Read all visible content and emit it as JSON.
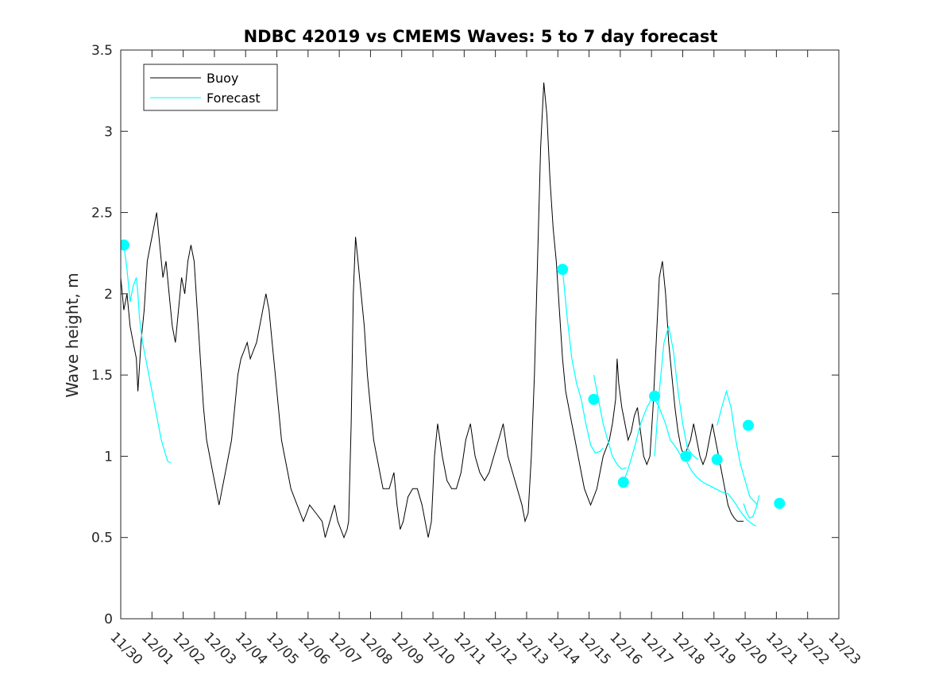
{
  "chart_data": {
    "type": "line",
    "title": "NDBC 42019 vs CMEMS Waves: 5 to 7 day forecast",
    "xlabel": "",
    "ylabel": "Wave height, m",
    "xlim": [
      "11/30",
      "12/23"
    ],
    "ylim": [
      0,
      3.5
    ],
    "x_ticks": [
      "11/30",
      "12/01",
      "12/02",
      "12/03",
      "12/04",
      "12/05",
      "12/06",
      "12/07",
      "12/08",
      "12/09",
      "12/10",
      "12/11",
      "12/12",
      "12/13",
      "12/14",
      "12/15",
      "12/16",
      "12/17",
      "12/18",
      "12/19",
      "12/20",
      "12/21",
      "12/22",
      "12/23"
    ],
    "y_ticks": [
      "0",
      "0.5",
      "1",
      "1.5",
      "2",
      "2.5",
      "3",
      "3.5"
    ],
    "grid": false,
    "legend": {
      "position": "top-left",
      "entries": [
        "Buoy",
        "Forecast"
      ]
    },
    "colors": {
      "buoy": "#000000",
      "forecast": "#00ffff",
      "axes": "#262626"
    },
    "series": [
      {
        "name": "Buoy",
        "x_unit": "days since 11/30",
        "points": [
          [
            0.0,
            2.1
          ],
          [
            0.1,
            1.9
          ],
          [
            0.2,
            2.0
          ],
          [
            0.3,
            1.8
          ],
          [
            0.4,
            1.7
          ],
          [
            0.5,
            1.6
          ],
          [
            0.55,
            1.4
          ],
          [
            0.65,
            1.7
          ],
          [
            0.75,
            1.9
          ],
          [
            0.85,
            2.2
          ],
          [
            0.95,
            2.3
          ],
          [
            1.05,
            2.4
          ],
          [
            1.15,
            2.5
          ],
          [
            1.25,
            2.3
          ],
          [
            1.35,
            2.1
          ],
          [
            1.45,
            2.2
          ],
          [
            1.55,
            2.0
          ],
          [
            1.65,
            1.8
          ],
          [
            1.75,
            1.7
          ],
          [
            1.85,
            1.9
          ],
          [
            1.95,
            2.1
          ],
          [
            2.05,
            2.0
          ],
          [
            2.15,
            2.2
          ],
          [
            2.25,
            2.3
          ],
          [
            2.35,
            2.2
          ],
          [
            2.45,
            1.9
          ],
          [
            2.55,
            1.6
          ],
          [
            2.65,
            1.3
          ],
          [
            2.75,
            1.1
          ],
          [
            2.85,
            1.0
          ],
          [
            2.95,
            0.9
          ],
          [
            3.05,
            0.8
          ],
          [
            3.15,
            0.7
          ],
          [
            3.25,
            0.8
          ],
          [
            3.35,
            0.9
          ],
          [
            3.45,
            1.0
          ],
          [
            3.55,
            1.1
          ],
          [
            3.65,
            1.3
          ],
          [
            3.75,
            1.5
          ],
          [
            3.85,
            1.6
          ],
          [
            3.95,
            1.65
          ],
          [
            4.05,
            1.7
          ],
          [
            4.15,
            1.6
          ],
          [
            4.25,
            1.65
          ],
          [
            4.35,
            1.7
          ],
          [
            4.45,
            1.8
          ],
          [
            4.55,
            1.9
          ],
          [
            4.65,
            2.0
          ],
          [
            4.75,
            1.9
          ],
          [
            4.85,
            1.7
          ],
          [
            4.95,
            1.5
          ],
          [
            5.05,
            1.3
          ],
          [
            5.15,
            1.1
          ],
          [
            5.25,
            1.0
          ],
          [
            5.35,
            0.9
          ],
          [
            5.45,
            0.8
          ],
          [
            5.55,
            0.75
          ],
          [
            5.65,
            0.7
          ],
          [
            5.75,
            0.65
          ],
          [
            5.85,
            0.6
          ],
          [
            5.95,
            0.65
          ],
          [
            6.05,
            0.7
          ],
          [
            6.25,
            0.65
          ],
          [
            6.45,
            0.6
          ],
          [
            6.55,
            0.5
          ],
          [
            6.7,
            0.6
          ],
          [
            6.85,
            0.7
          ],
          [
            6.95,
            0.6
          ],
          [
            7.05,
            0.55
          ],
          [
            7.15,
            0.5
          ],
          [
            7.25,
            0.55
          ],
          [
            7.3,
            0.6
          ],
          [
            7.38,
            1.2
          ],
          [
            7.45,
            2.0
          ],
          [
            7.52,
            2.35
          ],
          [
            7.6,
            2.2
          ],
          [
            7.7,
            2.0
          ],
          [
            7.8,
            1.8
          ],
          [
            7.9,
            1.5
          ],
          [
            8.0,
            1.3
          ],
          [
            8.1,
            1.1
          ],
          [
            8.2,
            1.0
          ],
          [
            8.3,
            0.9
          ],
          [
            8.4,
            0.8
          ],
          [
            8.6,
            0.8
          ],
          [
            8.75,
            0.9
          ],
          [
            8.85,
            0.7
          ],
          [
            8.95,
            0.55
          ],
          [
            9.05,
            0.6
          ],
          [
            9.2,
            0.75
          ],
          [
            9.35,
            0.8
          ],
          [
            9.5,
            0.8
          ],
          [
            9.65,
            0.7
          ],
          [
            9.75,
            0.6
          ],
          [
            9.85,
            0.5
          ],
          [
            9.95,
            0.6
          ],
          [
            10.05,
            1.0
          ],
          [
            10.15,
            1.2
          ],
          [
            10.3,
            1.0
          ],
          [
            10.45,
            0.85
          ],
          [
            10.6,
            0.8
          ],
          [
            10.75,
            0.8
          ],
          [
            10.9,
            0.9
          ],
          [
            11.05,
            1.1
          ],
          [
            11.2,
            1.2
          ],
          [
            11.35,
            1.0
          ],
          [
            11.5,
            0.9
          ],
          [
            11.65,
            0.85
          ],
          [
            11.8,
            0.9
          ],
          [
            11.95,
            1.0
          ],
          [
            12.1,
            1.1
          ],
          [
            12.25,
            1.2
          ],
          [
            12.4,
            1.0
          ],
          [
            12.55,
            0.9
          ],
          [
            12.7,
            0.8
          ],
          [
            12.85,
            0.7
          ],
          [
            12.95,
            0.6
          ],
          [
            13.05,
            0.65
          ],
          [
            13.15,
            1.0
          ],
          [
            13.25,
            1.5
          ],
          [
            13.35,
            2.2
          ],
          [
            13.45,
            2.9
          ],
          [
            13.55,
            3.3
          ],
          [
            13.65,
            3.1
          ],
          [
            13.75,
            2.7
          ],
          [
            13.85,
            2.4
          ],
          [
            13.95,
            2.2
          ],
          [
            14.05,
            1.9
          ],
          [
            14.15,
            1.6
          ],
          [
            14.25,
            1.4
          ],
          [
            14.35,
            1.3
          ],
          [
            14.45,
            1.2
          ],
          [
            14.55,
            1.1
          ],
          [
            14.65,
            1.0
          ],
          [
            14.75,
            0.9
          ],
          [
            14.85,
            0.8
          ],
          [
            14.95,
            0.75
          ],
          [
            15.05,
            0.7
          ],
          [
            15.15,
            0.75
          ],
          [
            15.25,
            0.8
          ],
          [
            15.35,
            0.9
          ],
          [
            15.45,
            1.0
          ],
          [
            15.55,
            1.05
          ],
          [
            15.65,
            1.1
          ],
          [
            15.75,
            1.2
          ],
          [
            15.85,
            1.35
          ],
          [
            15.9,
            1.6
          ],
          [
            15.95,
            1.45
          ],
          [
            16.05,
            1.3
          ],
          [
            16.15,
            1.2
          ],
          [
            16.25,
            1.1
          ],
          [
            16.35,
            1.15
          ],
          [
            16.45,
            1.25
          ],
          [
            16.55,
            1.3
          ],
          [
            16.65,
            1.15
          ],
          [
            16.75,
            1.0
          ],
          [
            16.85,
            0.95
          ],
          [
            16.95,
            1.0
          ],
          [
            17.05,
            1.3
          ],
          [
            17.15,
            1.7
          ],
          [
            17.25,
            2.1
          ],
          [
            17.35,
            2.2
          ],
          [
            17.45,
            2.0
          ],
          [
            17.55,
            1.7
          ],
          [
            17.65,
            1.5
          ],
          [
            17.75,
            1.3
          ],
          [
            17.85,
            1.15
          ],
          [
            17.95,
            1.05
          ],
          [
            18.05,
            1.0
          ],
          [
            18.15,
            1.05
          ],
          [
            18.25,
            1.1
          ],
          [
            18.35,
            1.2
          ],
          [
            18.45,
            1.1
          ],
          [
            18.55,
            1.0
          ],
          [
            18.65,
            0.95
          ],
          [
            18.75,
            1.0
          ],
          [
            18.85,
            1.1
          ],
          [
            18.95,
            1.2
          ],
          [
            19.05,
            1.1
          ],
          [
            19.15,
            1.0
          ],
          [
            19.25,
            0.9
          ],
          [
            19.35,
            0.8
          ],
          [
            19.45,
            0.7
          ],
          [
            19.55,
            0.65
          ],
          [
            19.65,
            0.62
          ],
          [
            19.75,
            0.6
          ],
          [
            19.85,
            0.6
          ],
          [
            19.95,
            0.6
          ]
        ]
      },
      {
        "name": "Forecast",
        "x_unit": "days since 11/30",
        "segments": [
          [
            [
              0.1,
              2.3
            ],
            [
              0.2,
              2.15
            ],
            [
              0.3,
              1.95
            ],
            [
              0.4,
              2.05
            ],
            [
              0.5,
              2.1
            ],
            [
              0.55,
              2.0
            ],
            [
              0.6,
              1.85
            ],
            [
              0.7,
              1.7
            ],
            [
              0.9,
              1.5
            ],
            [
              1.1,
              1.3
            ],
            [
              1.3,
              1.1
            ],
            [
              1.5,
              0.97
            ],
            [
              1.6,
              0.96
            ]
          ],
          [
            [
              14.15,
              2.15
            ],
            [
              14.3,
              1.85
            ],
            [
              14.45,
              1.6
            ],
            [
              14.6,
              1.45
            ],
            [
              14.75,
              1.35
            ],
            [
              14.9,
              1.2
            ],
            [
              15.05,
              1.07
            ],
            [
              15.2,
              1.02
            ],
            [
              15.35,
              1.03
            ],
            [
              15.45,
              1.05
            ]
          ],
          [
            [
              15.15,
              1.5
            ],
            [
              15.3,
              1.35
            ],
            [
              15.45,
              1.2
            ],
            [
              15.6,
              1.1
            ],
            [
              15.75,
              1.0
            ],
            [
              15.9,
              0.95
            ],
            [
              16.05,
              0.92
            ],
            [
              16.2,
              0.93
            ]
          ],
          [
            [
              16.1,
              0.84
            ],
            [
              16.25,
              0.92
            ],
            [
              16.45,
              1.05
            ],
            [
              16.65,
              1.2
            ],
            [
              16.85,
              1.3
            ],
            [
              17.05,
              1.37
            ],
            [
              17.25,
              1.3
            ],
            [
              17.45,
              1.2
            ],
            [
              17.6,
              1.1
            ],
            [
              17.8,
              1.05
            ],
            [
              17.95,
              1.0
            ]
          ],
          [
            [
              17.1,
              1.0
            ],
            [
              17.25,
              1.4
            ],
            [
              17.4,
              1.7
            ],
            [
              17.55,
              1.8
            ],
            [
              17.7,
              1.65
            ],
            [
              17.85,
              1.4
            ],
            [
              18.0,
              1.2
            ],
            [
              18.15,
              1.05
            ],
            [
              18.35,
              1.0
            ],
            [
              18.5,
              0.98
            ]
          ],
          [
            [
              18.1,
              0.98
            ],
            [
              18.25,
              0.92
            ],
            [
              18.45,
              0.87
            ],
            [
              18.65,
              0.84
            ],
            [
              18.85,
              0.82
            ],
            [
              19.05,
              0.8
            ],
            [
              19.25,
              0.78
            ],
            [
              19.45,
              0.77
            ],
            [
              19.65,
              0.72
            ],
            [
              19.85,
              0.66
            ],
            [
              20.05,
              0.61
            ],
            [
              20.25,
              0.58
            ],
            [
              20.35,
              0.57
            ]
          ],
          [
            [
              19.1,
              1.19
            ],
            [
              19.25,
              1.3
            ],
            [
              19.4,
              1.4
            ],
            [
              19.55,
              1.3
            ],
            [
              19.7,
              1.1
            ],
            [
              19.85,
              0.95
            ],
            [
              20.0,
              0.85
            ],
            [
              20.15,
              0.75
            ],
            [
              20.3,
              0.72
            ],
            [
              20.4,
              0.7
            ]
          ],
          [
            [
              19.95,
              0.71
            ],
            [
              20.05,
              0.65
            ],
            [
              20.15,
              0.62
            ],
            [
              20.25,
              0.63
            ],
            [
              20.35,
              0.68
            ],
            [
              20.45,
              0.76
            ]
          ]
        ],
        "markers": [
          [
            0.1,
            2.3
          ],
          [
            14.15,
            2.15
          ],
          [
            15.15,
            1.35
          ],
          [
            16.1,
            0.84
          ],
          [
            17.1,
            1.37
          ],
          [
            18.1,
            1.0
          ],
          [
            19.1,
            0.98
          ],
          [
            20.1,
            1.19
          ],
          [
            21.1,
            0.71
          ]
        ]
      }
    ]
  }
}
